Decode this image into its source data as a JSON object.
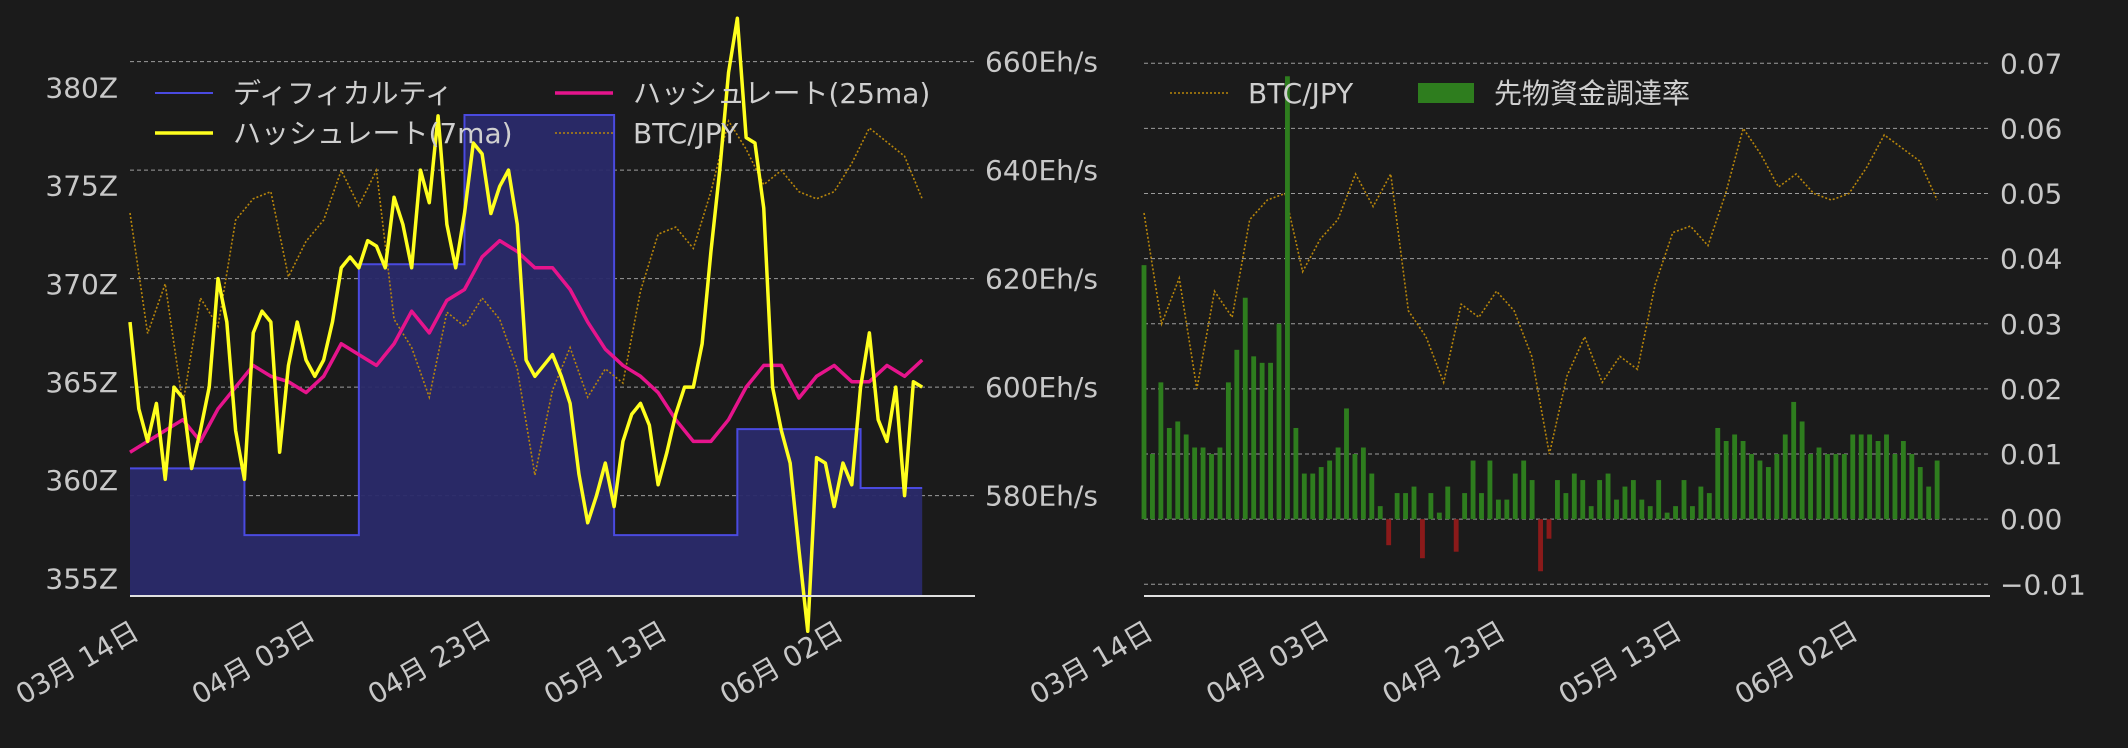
{
  "colors": {
    "background": "#1b1b1b",
    "grid": "#bdbdbd",
    "text": "#c8c8c8",
    "difficulty_line": "#4a4ae0",
    "difficulty_fill": "#2a2a6a",
    "hashrate_7ma": "#ffff1e",
    "hashrate_25ma": "#e6148c",
    "btc_jpy": "#b8860b",
    "funding_positive": "#2e7d1e",
    "funding_negative": "#8b1a1a"
  },
  "chart_data": [
    {
      "type": "line",
      "x_ticks": [
        "03月 14日",
        "04月 03日",
        "04月 23日",
        "05月 13日",
        "06月 02日"
      ],
      "x_tick_days": [
        0,
        20,
        40,
        60,
        80
      ],
      "x_range_days": [
        0,
        96
      ],
      "left_axis": {
        "ticks": [
          "355Z",
          "360Z",
          "365Z",
          "370Z",
          "375Z",
          "380Z"
        ],
        "values": [
          355,
          360,
          365,
          370,
          375,
          380
        ],
        "ylim": [
          354.1,
          381.4
        ]
      },
      "right_axis": {
        "ticks": [
          "580Eh/s",
          "600Eh/s",
          "620Eh/s",
          "640Eh/s",
          "660Eh/s"
        ],
        "values": [
          580,
          600,
          620,
          640,
          660
        ],
        "ylim": [
          561.5,
          660.3
        ]
      },
      "grid": true,
      "legend": {
        "position": "top",
        "entries": [
          {
            "label": "ディフィカルティ",
            "series": "difficulty"
          },
          {
            "label": "ハッシュレート(7ma)",
            "series": "hashrate_7ma"
          },
          {
            "label": "ハッシュレート(25ma)",
            "series": "hashrate_25ma"
          },
          {
            "label": "BTC/JPY",
            "series": "btc_jpy"
          }
        ]
      },
      "difficulty": {
        "days": [
          0,
          13,
          13,
          26,
          26,
          38,
          38,
          55,
          55,
          69,
          69,
          83,
          83,
          90
        ],
        "values": [
          360.6,
          360.6,
          357.2,
          357.2,
          371.0,
          371.0,
          378.6,
          378.6,
          357.2,
          357.2,
          362.6,
          362.6,
          359.6,
          359.6
        ]
      },
      "hashrate_7ma_days": [
        0,
        1,
        2,
        3,
        4,
        5,
        6,
        7,
        8,
        9,
        10,
        11,
        12,
        13,
        14,
        15,
        16,
        17,
        18,
        19,
        20,
        21,
        22,
        23,
        24,
        25,
        26,
        27,
        28,
        29,
        30,
        31,
        32,
        33,
        34,
        35,
        36,
        37,
        38,
        39,
        40,
        41,
        42,
        43,
        44,
        45,
        46,
        47,
        48,
        49,
        50,
        51,
        52,
        53,
        54,
        55,
        56,
        57,
        58,
        59,
        60,
        61,
        62,
        63,
        64,
        65,
        66,
        67,
        68,
        69,
        70,
        71,
        72,
        73,
        74,
        75,
        76,
        77,
        78,
        79,
        80,
        81,
        82,
        83,
        84,
        85,
        86,
        87,
        88,
        89,
        90
      ],
      "hashrate_7ma": [
        612,
        596,
        590,
        597,
        583,
        600,
        598,
        585,
        592,
        600,
        620,
        612,
        592,
        583,
        610,
        614,
        612,
        588,
        604,
        612,
        605,
        602,
        605,
        612,
        622,
        624,
        622,
        627,
        626,
        622,
        635,
        630,
        622,
        640,
        634,
        650,
        630,
        622,
        632,
        645,
        643,
        632,
        637,
        640,
        630,
        605,
        602,
        604,
        606,
        602,
        597,
        584,
        575,
        580,
        586,
        578,
        590,
        595,
        597,
        593,
        582,
        588,
        595,
        600,
        600,
        608,
        625,
        640,
        658,
        668,
        646,
        645,
        633,
        600,
        592,
        586,
        570,
        555,
        587,
        586,
        578,
        586,
        582,
        600,
        610,
        594,
        590,
        600,
        580,
        601,
        600
      ],
      "hashrate_25ma_days": [
        0,
        2,
        4,
        6,
        8,
        10,
        12,
        14,
        16,
        18,
        20,
        22,
        24,
        26,
        28,
        30,
        32,
        34,
        36,
        38,
        40,
        42,
        44,
        46,
        48,
        50,
        52,
        54,
        56,
        58,
        60,
        62,
        64,
        66,
        68,
        70,
        72,
        74,
        76,
        78,
        80,
        82,
        84,
        86,
        88,
        90
      ],
      "hashrate_25ma": [
        588,
        590,
        592,
        594,
        590,
        596,
        600,
        604,
        602,
        601,
        599,
        602,
        608,
        606,
        604,
        608,
        614,
        610,
        616,
        618,
        624,
        627,
        625,
        622,
        622,
        618,
        612,
        607,
        604,
        602,
        599,
        594,
        590,
        590,
        594,
        600,
        604,
        604,
        598,
        602,
        604,
        601,
        601,
        604,
        602,
        605
      ],
      "btc_jpy_days": [
        0,
        2,
        4,
        6,
        8,
        10,
        12,
        14,
        16,
        18,
        20,
        22,
        24,
        26,
        28,
        30,
        32,
        34,
        36,
        38,
        40,
        42,
        44,
        46,
        48,
        50,
        52,
        54,
        56,
        58,
        60,
        62,
        64,
        66,
        68,
        70,
        72,
        74,
        76,
        78,
        80,
        82,
        84,
        86,
        88,
        90
      ],
      "btc_jpy": [
        0.047,
        0.03,
        0.037,
        0.02,
        0.035,
        0.031,
        0.046,
        0.049,
        0.05,
        0.038,
        0.043,
        0.046,
        0.053,
        0.048,
        0.053,
        0.032,
        0.028,
        0.021,
        0.033,
        0.031,
        0.035,
        0.032,
        0.025,
        0.01,
        0.022,
        0.028,
        0.021,
        0.025,
        0.023,
        0.036,
        0.044,
        0.045,
        0.042,
        0.05,
        0.06,
        0.056,
        0.051,
        0.053,
        0.05,
        0.049,
        0.05,
        0.054,
        0.059,
        0.057,
        0.055,
        0.049
      ]
    },
    {
      "type": "bar",
      "x_ticks": [
        "03月 14日",
        "04月 03日",
        "04月 23日",
        "05月 13日",
        "06月 02日"
      ],
      "x_tick_days": [
        0,
        20,
        40,
        60,
        80
      ],
      "x_range_days": [
        0,
        96
      ],
      "right_axis": {
        "ticks": [
          "0.07",
          "0.06",
          "0.05",
          "0.04",
          "0.03",
          "0.02",
          "0.01",
          "0.00",
          "−0.01"
        ],
        "values": [
          0.07,
          0.06,
          0.05,
          0.04,
          0.03,
          0.02,
          0.01,
          0.0,
          -0.01
        ],
        "ylim": [
          -0.0118,
          0.0705
        ]
      },
      "grid": true,
      "legend": {
        "position": "top",
        "entries": [
          {
            "label": "BTC/JPY",
            "series": "btc_jpy"
          },
          {
            "label": "先物資金調達率",
            "series": "funding_rate"
          }
        ]
      },
      "funding_rate": [
        0.039,
        0.01,
        0.021,
        0.014,
        0.015,
        0.013,
        0.011,
        0.011,
        0.01,
        0.011,
        0.021,
        0.026,
        0.034,
        0.025,
        0.024,
        0.024,
        0.03,
        0.068,
        0.014,
        0.007,
        0.007,
        0.008,
        0.009,
        0.011,
        0.017,
        0.01,
        0.011,
        0.007,
        0.002,
        -0.004,
        0.004,
        0.004,
        0.005,
        -0.006,
        0.004,
        0.001,
        0.005,
        -0.005,
        0.004,
        0.009,
        0.004,
        0.009,
        0.003,
        0.003,
        0.007,
        0.009,
        0.006,
        -0.008,
        -0.003,
        0.006,
        0.004,
        0.007,
        0.006,
        0.002,
        0.006,
        0.007,
        0.003,
        0.005,
        0.006,
        0.003,
        0.002,
        0.006,
        0.001,
        0.002,
        0.006,
        0.002,
        0.005,
        0.004,
        0.014,
        0.012,
        0.013,
        0.012,
        0.01,
        0.009,
        0.008,
        0.01,
        0.013,
        0.018,
        0.015,
        0.01,
        0.011,
        0.01,
        0.01,
        0.01,
        0.013,
        0.013,
        0.013,
        0.012,
        0.013,
        0.01,
        0.012,
        0.01,
        0.008,
        0.005,
        0.009
      ],
      "btc_jpy_days": [
        0,
        2,
        4,
        6,
        8,
        10,
        12,
        14,
        16,
        18,
        20,
        22,
        24,
        26,
        28,
        30,
        32,
        34,
        36,
        38,
        40,
        42,
        44,
        46,
        48,
        50,
        52,
        54,
        56,
        58,
        60,
        62,
        64,
        66,
        68,
        70,
        72,
        74,
        76,
        78,
        80,
        82,
        84,
        86,
        88,
        90
      ],
      "btc_jpy": [
        0.047,
        0.03,
        0.037,
        0.02,
        0.035,
        0.031,
        0.046,
        0.049,
        0.05,
        0.038,
        0.043,
        0.046,
        0.053,
        0.048,
        0.053,
        0.032,
        0.028,
        0.021,
        0.033,
        0.031,
        0.035,
        0.032,
        0.025,
        0.01,
        0.022,
        0.028,
        0.021,
        0.025,
        0.023,
        0.036,
        0.044,
        0.045,
        0.042,
        0.05,
        0.06,
        0.056,
        0.051,
        0.053,
        0.05,
        0.049,
        0.05,
        0.054,
        0.059,
        0.057,
        0.055,
        0.049
      ]
    }
  ]
}
